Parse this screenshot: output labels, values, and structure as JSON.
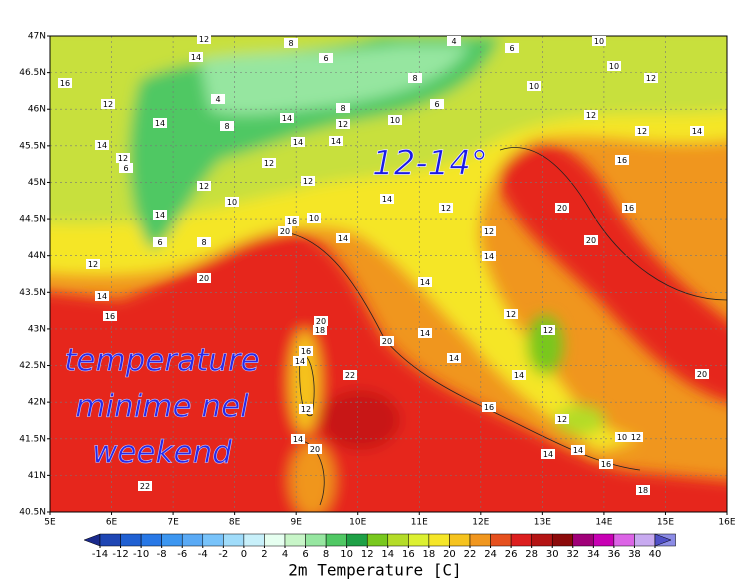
{
  "map": {
    "lat_labels": [
      "47N",
      "46.5N",
      "46N",
      "45.5N",
      "45N",
      "44.5N",
      "44N",
      "43.5N",
      "43N",
      "42.5N",
      "42N",
      "41.5N",
      "41N",
      "40.5N"
    ],
    "lon_labels": [
      "5E",
      "6E",
      "7E",
      "8E",
      "9E",
      "10E",
      "11E",
      "12E",
      "13E",
      "14E",
      "15E",
      "16E"
    ],
    "contour_labels": [
      12,
      8,
      4,
      6,
      10,
      10,
      12,
      16,
      14,
      6,
      12,
      4,
      8,
      8,
      6,
      10,
      12,
      14,
      12,
      6,
      14,
      8,
      14,
      12,
      10,
      14,
      12,
      14,
      12,
      14,
      12,
      12,
      16,
      10,
      14,
      12,
      20,
      20,
      16,
      14,
      6,
      8,
      20,
      16,
      10,
      14,
      12,
      12,
      14,
      14,
      12,
      20,
      14,
      16,
      20,
      18,
      14,
      20,
      16,
      14,
      12,
      22,
      14,
      14,
      20,
      12,
      16,
      12,
      14,
      20,
      10,
      12,
      14,
      14,
      16,
      22,
      18
    ],
    "annotations": {
      "range": "12-14°",
      "note": [
        "temperature",
        "minime nel",
        "weekend"
      ]
    }
  },
  "colorbar": {
    "title": "2m Temperature [C]",
    "ticks": [
      -14,
      -12,
      -10,
      -8,
      -6,
      -4,
      -2,
      0,
      2,
      4,
      6,
      8,
      10,
      12,
      14,
      16,
      18,
      20,
      22,
      24,
      26,
      28,
      30,
      32,
      34,
      36,
      38,
      40
    ],
    "colors": [
      "#1a2a8c",
      "#1e46b4",
      "#2060d2",
      "#2878e6",
      "#3c96f0",
      "#5aaaf5",
      "#78c3fa",
      "#a0dcfa",
      "#c8f0fa",
      "#e6fff0",
      "#c8f5c8",
      "#96e6a0",
      "#50c864",
      "#1ea046",
      "#78c81e",
      "#b4dc28",
      "#dcf032",
      "#f5e628",
      "#f5c31e",
      "#f0961e",
      "#e6501e",
      "#dc1e1e",
      "#b41414",
      "#8c0a0a",
      "#a00078",
      "#c800b4",
      "#dc64e6",
      "#c8aaf0",
      "#8c8ce6",
      "#5050c8"
    ]
  }
}
